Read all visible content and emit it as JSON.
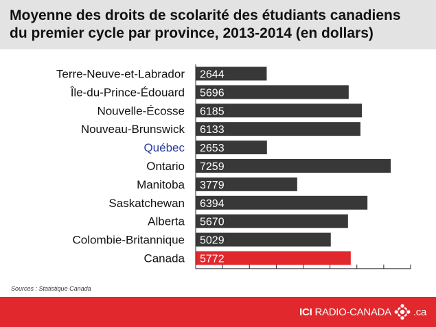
{
  "title": "Moyenne des droits de scolarité des étudiants canadiens\ndu premier cycle par province, 2013-2014 (en dollars)",
  "source": {
    "label": "Sources",
    "separator": " : ",
    "text": "Statistique Canada"
  },
  "brand": {
    "ici": "ICI",
    "name": "RADIO-CANADA",
    "suffix": ".ca",
    "logo_icon": "radio-canada-gem-icon"
  },
  "colors": {
    "bar": "#383838",
    "bar_highlight": "#e0282d",
    "label": "#111111",
    "label_highlight": "#2b3c9c",
    "footer": "#e0282d",
    "title_band": "#e3e3e3"
  },
  "chart_data": {
    "type": "bar",
    "orientation": "horizontal",
    "categories": [
      "Terre-Neuve-et-Labrador",
      "Île-du-Prince-Édouard",
      "Nouvelle-Écosse",
      "Nouveau-Brunswick",
      "Québec",
      "Ontario",
      "Manitoba",
      "Saskatchewan",
      "Alberta",
      "Colombie-Britannique",
      "Canada"
    ],
    "values": [
      2644,
      5696,
      6185,
      6133,
      2653,
      7259,
      3779,
      6394,
      5670,
      5029,
      5772
    ],
    "data_labels": true,
    "highlight_label": "Québec",
    "highlight_bar": "Canada",
    "xlim": [
      0,
      8000
    ],
    "tick_step": 1000,
    "grid": false,
    "legend": "none",
    "title": "Moyenne des droits de scolarité des étudiants canadiens du premier cycle par province, 2013-2014 (en dollars)",
    "xlabel": "",
    "ylabel": ""
  }
}
